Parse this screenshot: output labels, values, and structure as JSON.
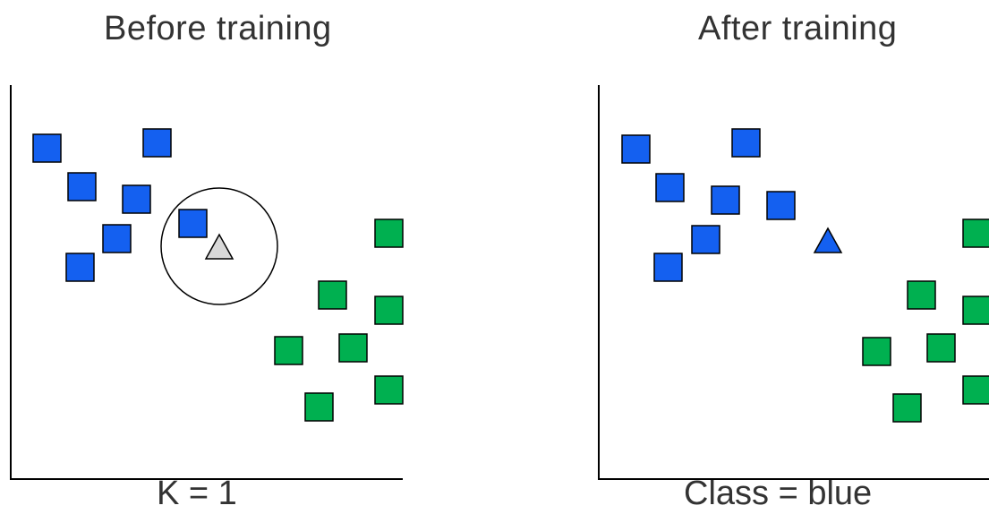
{
  "panels": [
    {
      "title": "Before training",
      "caption": "K = 1",
      "query_point_color": "#d9d9d9",
      "neighbor_circle": true
    },
    {
      "title": "After training",
      "caption": "Class = blue",
      "query_point_color": "#1460f0",
      "neighbor_circle": false
    }
  ],
  "colors": {
    "blue": "#1460f0",
    "green": "#00b050",
    "gray": "#d9d9d9",
    "outline": "#000000"
  },
  "point_classes": {
    "squares": [
      "blue",
      "green"
    ],
    "query": "triangle"
  }
}
